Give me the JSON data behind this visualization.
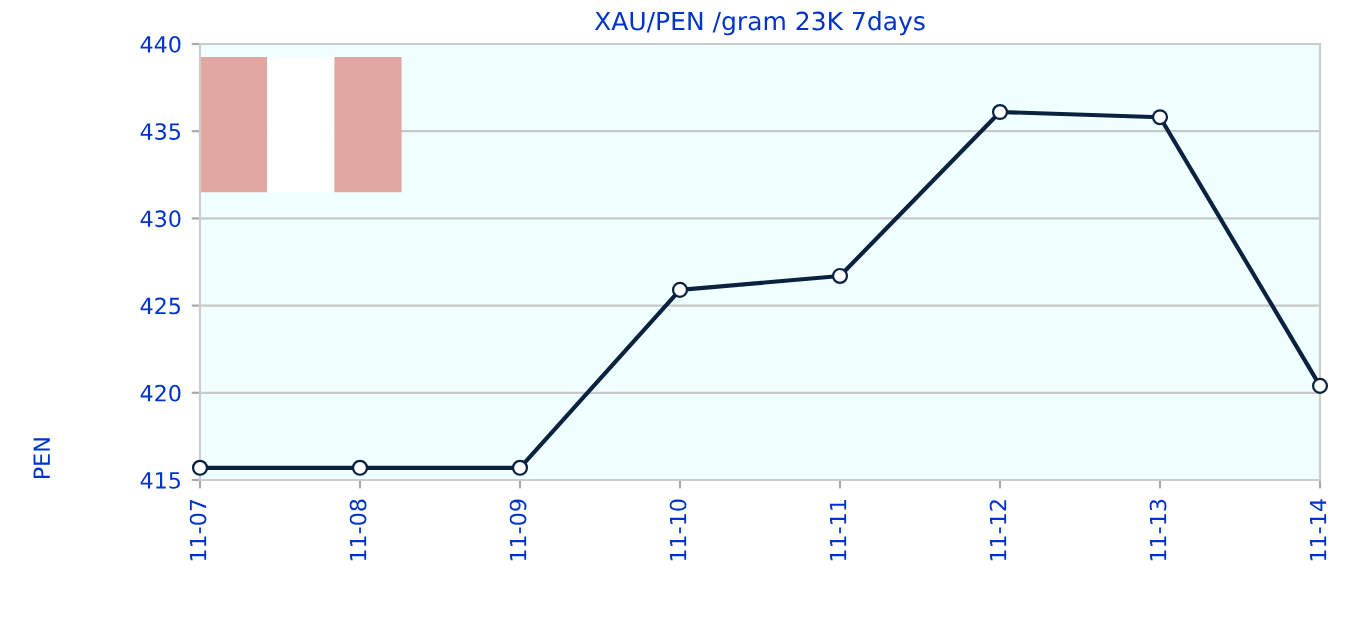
{
  "chart_data": {
    "type": "line",
    "title": "XAU/PEN /gram 23K 7days",
    "ylabel": "PEN",
    "categories": [
      "11-07",
      "11-08",
      "11-09",
      "11-10",
      "11-11",
      "11-12",
      "11-13",
      "11-14"
    ],
    "series": [
      {
        "color": "#0a2240",
        "values": [
          415.7,
          415.7,
          415.7,
          425.9,
          426.7,
          436.1,
          435.8,
          420.4
        ]
      }
    ],
    "ylim": [
      415,
      440
    ],
    "yticks": [
      415,
      420,
      425,
      430,
      435,
      440
    ],
    "grid": "y",
    "marker": "circle",
    "line_style": "solid",
    "legend": false
  }
}
